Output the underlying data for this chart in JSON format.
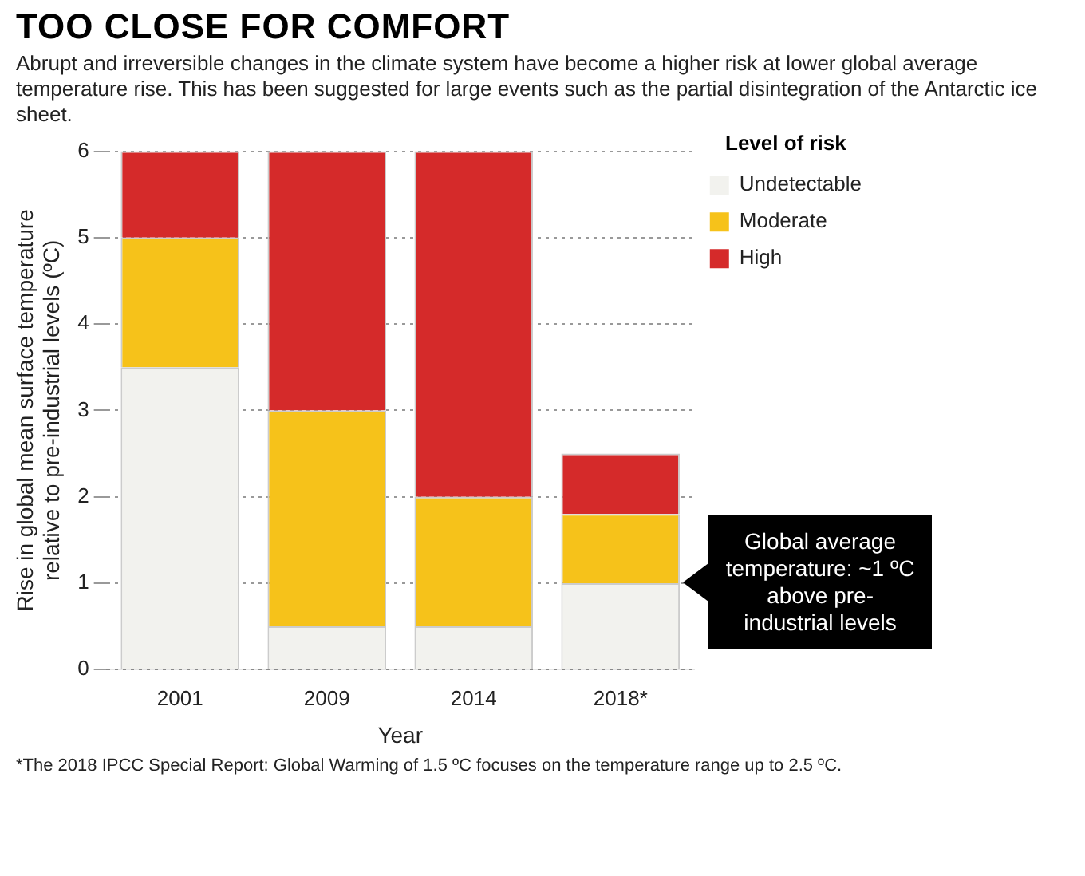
{
  "chart_data": {
    "type": "bar",
    "title": "TOO CLOSE FOR COMFORT",
    "subtitle": "Abrupt and irreversible changes in the climate system have become a higher risk at lower global average temperature rise. This has been suggested for large events such as the partial disintegration of the Antarctic ice sheet.",
    "xlabel": "Year",
    "ylabel": "Rise in global mean surface temperature relative to pre-industrial levels (ºC)",
    "legend_title": "Level of risk",
    "categories": [
      "2001",
      "2009",
      "2014",
      "2018*"
    ],
    "stacked": true,
    "series": [
      {
        "name": "Undetectable",
        "color": "#f2f2ee",
        "values": [
          3.5,
          0.5,
          0.5,
          1
        ]
      },
      {
        "name": "Moderate",
        "color": "#f6c21a",
        "values": [
          1.5,
          2.5,
          1.5,
          0.8
        ]
      },
      {
        "name": "High",
        "color": "#d52a2a",
        "values": [
          1,
          3,
          4,
          0.7
        ]
      }
    ],
    "ylim": [
      0,
      6
    ],
    "yticks": [
      0,
      1,
      2,
      3,
      4,
      5,
      6
    ],
    "grid": "y",
    "legend": "top right",
    "annotations": [
      "Global average temperature: ~1 ºC above pre-industrial levels",
      "*The 2018 IPCC Special Report: Global Warming of 1.5 ºC focuses on the temperature range up to 2.5 ºC."
    ]
  }
}
